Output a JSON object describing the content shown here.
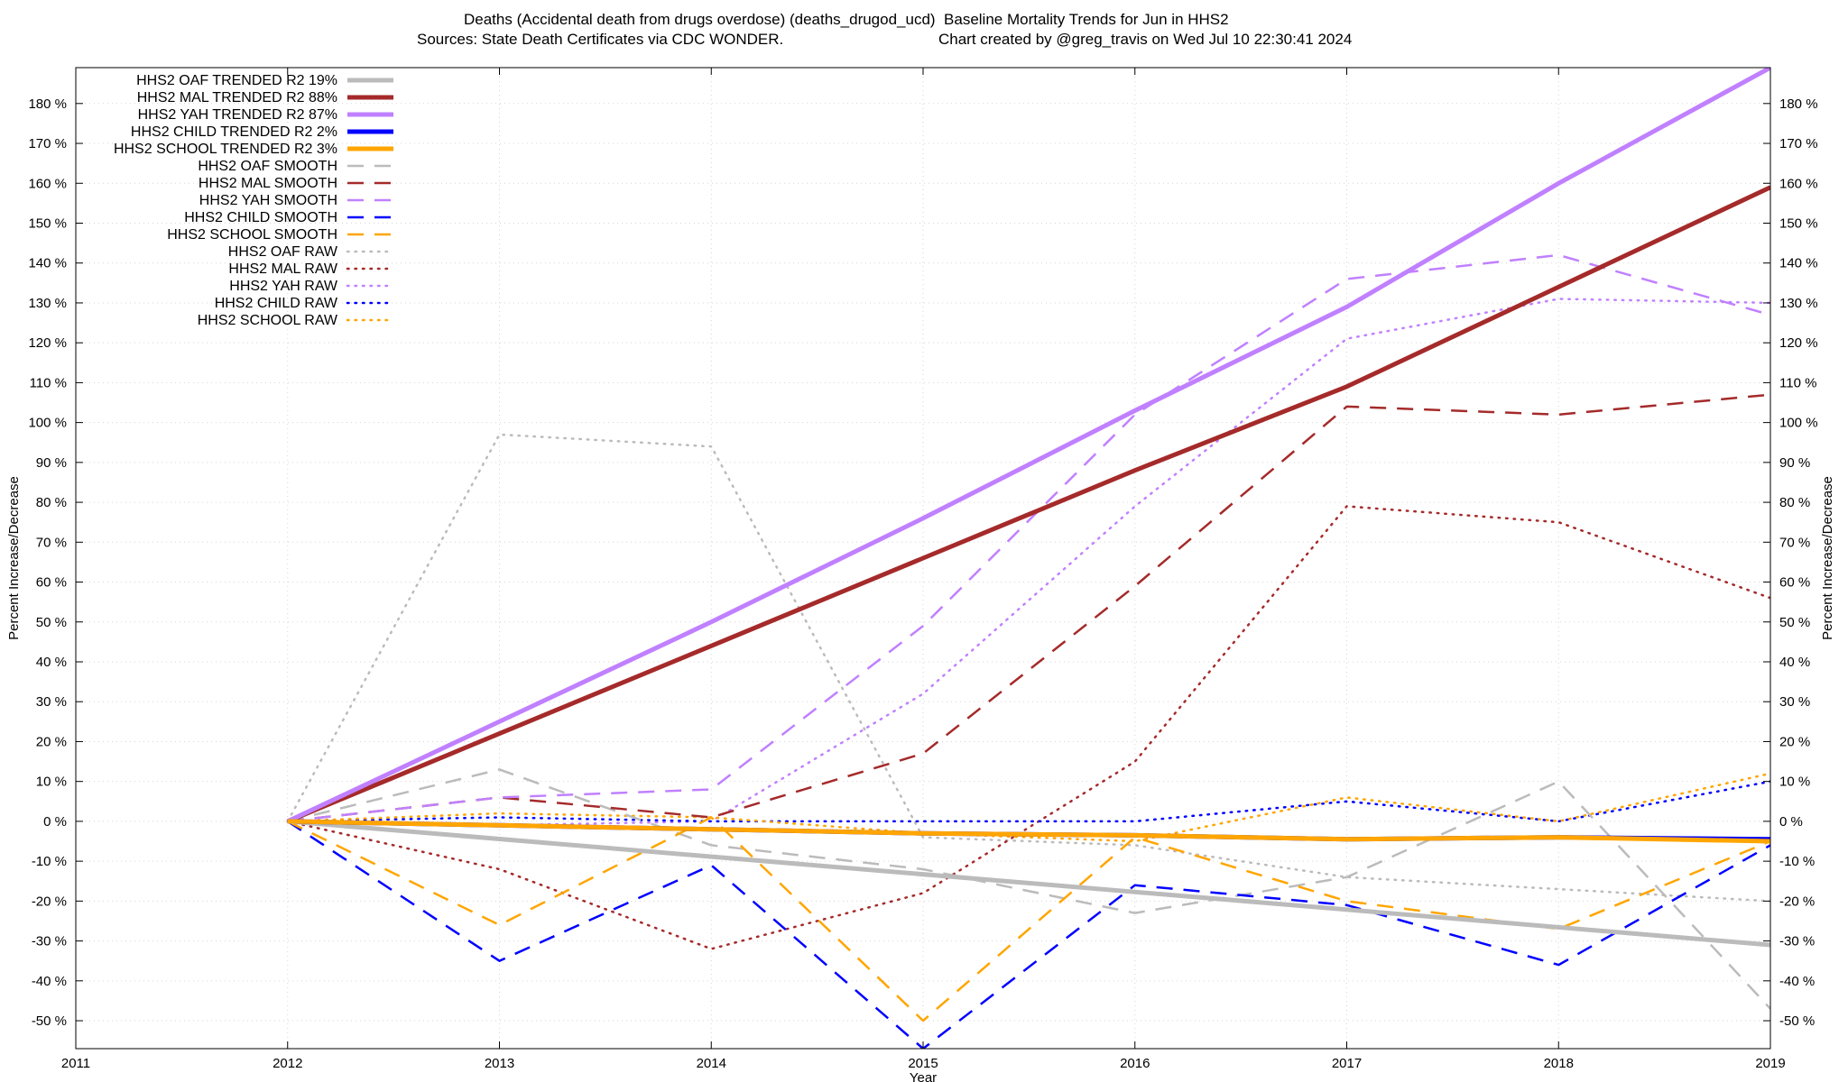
{
  "header": {
    "title": "Deaths (Accidental death from drugs overdose) (deaths_drugod_ucd)  Baseline Mortality Trends for Jun in HHS2",
    "sources": "Sources: State Death Certificates via CDC WONDER.",
    "credit": "Chart created by @greg_travis on Wed Jul 10 22:30:41 2024"
  },
  "chart_data": {
    "type": "line",
    "xlabel": "Year",
    "ylabel": "Percent Increase/Decrease",
    "y2label": "Percent Increase/Decrease",
    "xlim": [
      2011,
      2019
    ],
    "ylim": [
      -57,
      189
    ],
    "x_ticks": [
      2011,
      2012,
      2013,
      2014,
      2015,
      2016,
      2017,
      2018,
      2019
    ],
    "y_ticks": [
      -50,
      -40,
      -30,
      -20,
      -10,
      0,
      10,
      20,
      30,
      40,
      50,
      60,
      70,
      80,
      90,
      100,
      110,
      120,
      130,
      140,
      150,
      160,
      170,
      180
    ],
    "y_tick_suffix": " %",
    "grid": true,
    "legend_position": "top-left",
    "series": [
      {
        "name": "HHS2 OAF TRENDED R2",
        "r2": "19%",
        "style": "solid",
        "color": "#bbbbbb",
        "x": [
          2012,
          2019
        ],
        "values": [
          0,
          -31
        ]
      },
      {
        "name": "HHS2 MAL TRENDED R2",
        "r2": "88%",
        "style": "solid",
        "color": "#a52a2a",
        "x": [
          2012,
          2013,
          2014,
          2015,
          2016,
          2017,
          2018,
          2019
        ],
        "values": [
          0,
          22,
          44,
          66,
          88,
          109,
          134,
          159
        ]
      },
      {
        "name": "HHS2 YAH TRENDED R2",
        "r2": "87%",
        "style": "solid",
        "color": "#c080ff",
        "x": [
          2012,
          2013,
          2014,
          2015,
          2016,
          2017,
          2018,
          2019
        ],
        "values": [
          0,
          25,
          50,
          76,
          103,
          129,
          160,
          189
        ]
      },
      {
        "name": "HHS2 CHILD TRENDED R2",
        "r2": "2%",
        "style": "solid",
        "color": "#0000ff",
        "x": [
          2012,
          2013,
          2014,
          2015,
          2016,
          2017,
          2018,
          2019
        ],
        "values": [
          0,
          -1,
          -2,
          -3,
          -3.5,
          -4.5,
          -4,
          -4.5
        ]
      },
      {
        "name": "HHS2 SCHOOL TRENDED R2",
        "r2": "3%",
        "style": "solid",
        "color": "#ffa500",
        "x": [
          2012,
          2013,
          2014,
          2015,
          2016,
          2017,
          2018,
          2019
        ],
        "values": [
          0,
          -1,
          -2,
          -3,
          -3.5,
          -4.5,
          -4,
          -5
        ]
      },
      {
        "name": "HHS2 OAF SMOOTH",
        "r2": "",
        "style": "dashed",
        "color": "#bbbbbb",
        "x": [
          2012,
          2013,
          2014,
          2015,
          2016,
          2017,
          2018,
          2019
        ],
        "values": [
          0,
          13,
          -6,
          -12,
          -23,
          -14,
          10,
          -47
        ]
      },
      {
        "name": "HHS2 MAL SMOOTH",
        "r2": "",
        "style": "dashed",
        "color": "#a52a2a",
        "x": [
          2012,
          2013,
          2014,
          2015,
          2016,
          2017,
          2018,
          2019
        ],
        "values": [
          0,
          6,
          1,
          17,
          59,
          104,
          102,
          107
        ]
      },
      {
        "name": "HHS2 YAH SMOOTH",
        "r2": "",
        "style": "dashed",
        "color": "#c080ff",
        "x": [
          2012,
          2013,
          2014,
          2015,
          2016,
          2017,
          2018,
          2019
        ],
        "values": [
          0,
          6,
          8,
          49,
          102,
          136,
          142,
          127
        ]
      },
      {
        "name": "HHS2 CHILD SMOOTH",
        "r2": "",
        "style": "dashed",
        "color": "#0000ff",
        "x": [
          2012,
          2013,
          2014,
          2015,
          2016,
          2017,
          2018,
          2019
        ],
        "values": [
          0,
          -35,
          -11,
          -57,
          -16,
          -21,
          -36,
          -6
        ]
      },
      {
        "name": "HHS2 SCHOOL SMOOTH",
        "r2": "",
        "style": "dashed",
        "color": "#ffa500",
        "x": [
          2012,
          2013,
          2014,
          2015,
          2016,
          2017,
          2018,
          2019
        ],
        "values": [
          0,
          -26,
          1,
          -50,
          -4,
          -20,
          -27,
          -5
        ]
      },
      {
        "name": "HHS2 OAF RAW",
        "r2": "",
        "style": "dotted",
        "color": "#bbbbbb",
        "x": [
          2012,
          2013,
          2014,
          2015,
          2016,
          2017,
          2018,
          2019
        ],
        "values": [
          0,
          97,
          94,
          -4,
          -6,
          -14,
          -17,
          -20
        ]
      },
      {
        "name": "HHS2 MAL RAW",
        "r2": "",
        "style": "dotted",
        "color": "#a52a2a",
        "x": [
          2012,
          2013,
          2014,
          2015,
          2016,
          2017,
          2018,
          2019
        ],
        "values": [
          0,
          -12,
          -32,
          -18,
          15,
          79,
          75,
          56
        ]
      },
      {
        "name": "HHS2 YAH RAW",
        "r2": "",
        "style": "dotted",
        "color": "#c080ff",
        "x": [
          2012,
          2013,
          2014,
          2015,
          2016,
          2017,
          2018,
          2019
        ],
        "values": [
          0,
          -1,
          0,
          32,
          79,
          121,
          131,
          130
        ]
      },
      {
        "name": "HHS2 CHILD RAW",
        "r2": "",
        "style": "dotted",
        "color": "#0000ff",
        "x": [
          2012,
          2013,
          2014,
          2015,
          2016,
          2017,
          2018,
          2019
        ],
        "values": [
          0,
          1,
          0,
          0,
          0,
          5,
          0,
          10
        ]
      },
      {
        "name": "HHS2 SCHOOL RAW",
        "r2": "",
        "style": "dotted",
        "color": "#ffa500",
        "x": [
          2012,
          2013,
          2014,
          2015,
          2016,
          2017,
          2018,
          2019
        ],
        "values": [
          0,
          2,
          1,
          -3,
          -5,
          6,
          0,
          12
        ]
      }
    ]
  }
}
